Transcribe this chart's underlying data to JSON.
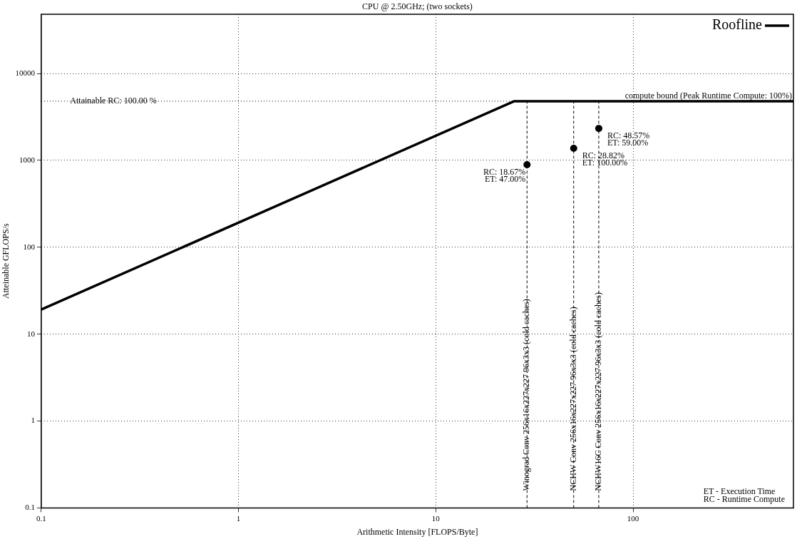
{
  "chart_data": {
    "type": "line",
    "title": "CPU @ 2.50GHz; (two sockets)",
    "xlabel": "Arithmetic Intensity [FLOPS/Byte]",
    "ylabel": "Atteinable GFLOPS/s",
    "log": "xy",
    "grid": true,
    "legend": "top right",
    "xlim": [
      0.1,
      650
    ],
    "ylim": [
      0.1,
      48000
    ],
    "xticks": [
      0.1,
      1,
      10,
      100
    ],
    "yticks": [
      0.1,
      1,
      10,
      100,
      1000,
      10000
    ],
    "series": [
      {
        "name": "Roofline",
        "type": "line",
        "color": "#000000",
        "x": [
          0.1,
          25,
          650
        ],
        "values": [
          19.2,
          4800,
          4800
        ],
        "marker": "none",
        "line_style": "solid"
      },
      {
        "type": "scatter",
        "color": "#000000",
        "x": [
          29,
          50,
          67
        ],
        "values": [
          890,
          1375,
          2330
        ],
        "marker": "circle"
      }
    ],
    "ref_lines": [
      {
        "axis": "y",
        "value": 4800,
        "line_style": "dotted",
        "color": "#000000"
      },
      {
        "axis": "x",
        "value": 29,
        "label": "Winograd Conv 256x16x227x227 96x3x3 (cold caches)",
        "line_style": "dashed",
        "color": "#000000"
      },
      {
        "axis": "x",
        "value": 50,
        "label": "NCHW Conv 256x16x227x227 96x3x3 (cold caches)",
        "line_style": "dashed",
        "color": "#000000"
      },
      {
        "axis": "x",
        "value": 67,
        "label": "NCHW16C Conv 256x16x227x227 96x3x3 (cold caches)",
        "line_style": "dashed",
        "color": "#000000"
      }
    ],
    "annotations": [
      {
        "text": "RC: 18.67%\nET: 47.00%",
        "x": 29,
        "y": 890
      },
      {
        "text": "RC: 28.82%\nET: 100.00%",
        "x": 50,
        "y": 1375
      },
      {
        "text": "RC: 48.57%\nET: 59.00%",
        "x": 67,
        "y": 2330
      },
      {
        "text": "compute bound (Peak Runtime Compute: 100%)",
        "x": 650,
        "y": 4800
      },
      {
        "text": "Attainable RC: 100.00 %",
        "x": 0.14,
        "y": 4800
      },
      "ET - Execution Time\nRC - Runtime Compute"
    ]
  }
}
